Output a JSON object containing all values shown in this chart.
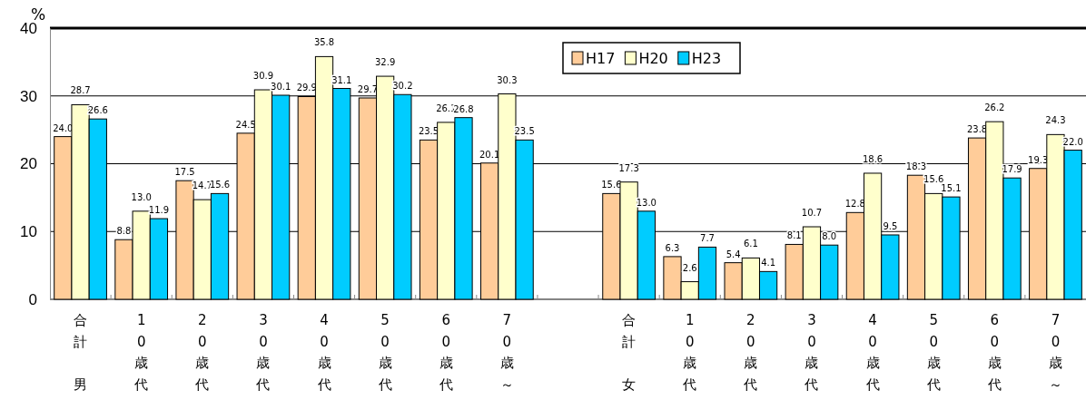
{
  "chart_data": {
    "type": "bar",
    "ylabel": "%",
    "categories": [
      "合計男",
      "10歳代",
      "20歳代",
      "30歳代",
      "40歳代",
      "50歳代",
      "60歳代",
      "70歳～",
      null,
      "合計女",
      "10歳代",
      "20歳代",
      "30歳代",
      "40歳代",
      "50歳代",
      "60歳代",
      "70歳～"
    ],
    "series": [
      {
        "name": "H17",
        "color": "#ffcc99",
        "values": [
          24.0,
          8.8,
          17.5,
          24.5,
          29.9,
          29.7,
          23.5,
          20.1,
          null,
          15.6,
          6.3,
          5.4,
          8.1,
          12.8,
          18.3,
          23.8,
          19.3
        ],
        "value_labels": [
          "24.0",
          "8.8",
          "17.5",
          "24.5",
          "29.9",
          "29.7",
          "23.5",
          "20.1",
          null,
          "15.6",
          "6.3",
          "5.4",
          "8.1",
          "12.8",
          "18.3",
          "23.8",
          "19.3"
        ]
      },
      {
        "name": "H20",
        "color": "#ffffcc",
        "values": [
          28.7,
          13.0,
          14.7,
          30.9,
          35.8,
          32.9,
          26.1,
          30.3,
          null,
          17.3,
          2.6,
          6.1,
          10.7,
          18.6,
          15.6,
          26.2,
          24.3
        ],
        "value_labels": [
          "28.7",
          "13.0",
          "14.7",
          "30.9",
          "35.8",
          "32.9",
          "26.1",
          "30.3",
          null,
          "17.3",
          "2.6",
          "6.1",
          "10.7",
          "18.6",
          "15.6",
          "26.2",
          "24.3"
        ]
      },
      {
        "name": "H23",
        "color": "#00ccff",
        "values": [
          26.6,
          11.9,
          15.6,
          30.1,
          31.1,
          30.2,
          26.8,
          23.5,
          null,
          13.0,
          7.7,
          4.1,
          8.0,
          9.5,
          15.1,
          17.9,
          22.0
        ],
        "value_labels": [
          "26.6",
          "11.9",
          "15.6",
          "30.1",
          "31.1",
          "30.2",
          "26.8",
          "23.5",
          null,
          "13.0",
          "7.7",
          "4.1",
          "8.0",
          "9.5",
          "15.1",
          "17.9",
          "22.0"
        ]
      }
    ],
    "ylim": [
      0,
      40
    ],
    "yticks": [
      0,
      10,
      20,
      30,
      40
    ],
    "grid": "y",
    "legend": "top"
  }
}
